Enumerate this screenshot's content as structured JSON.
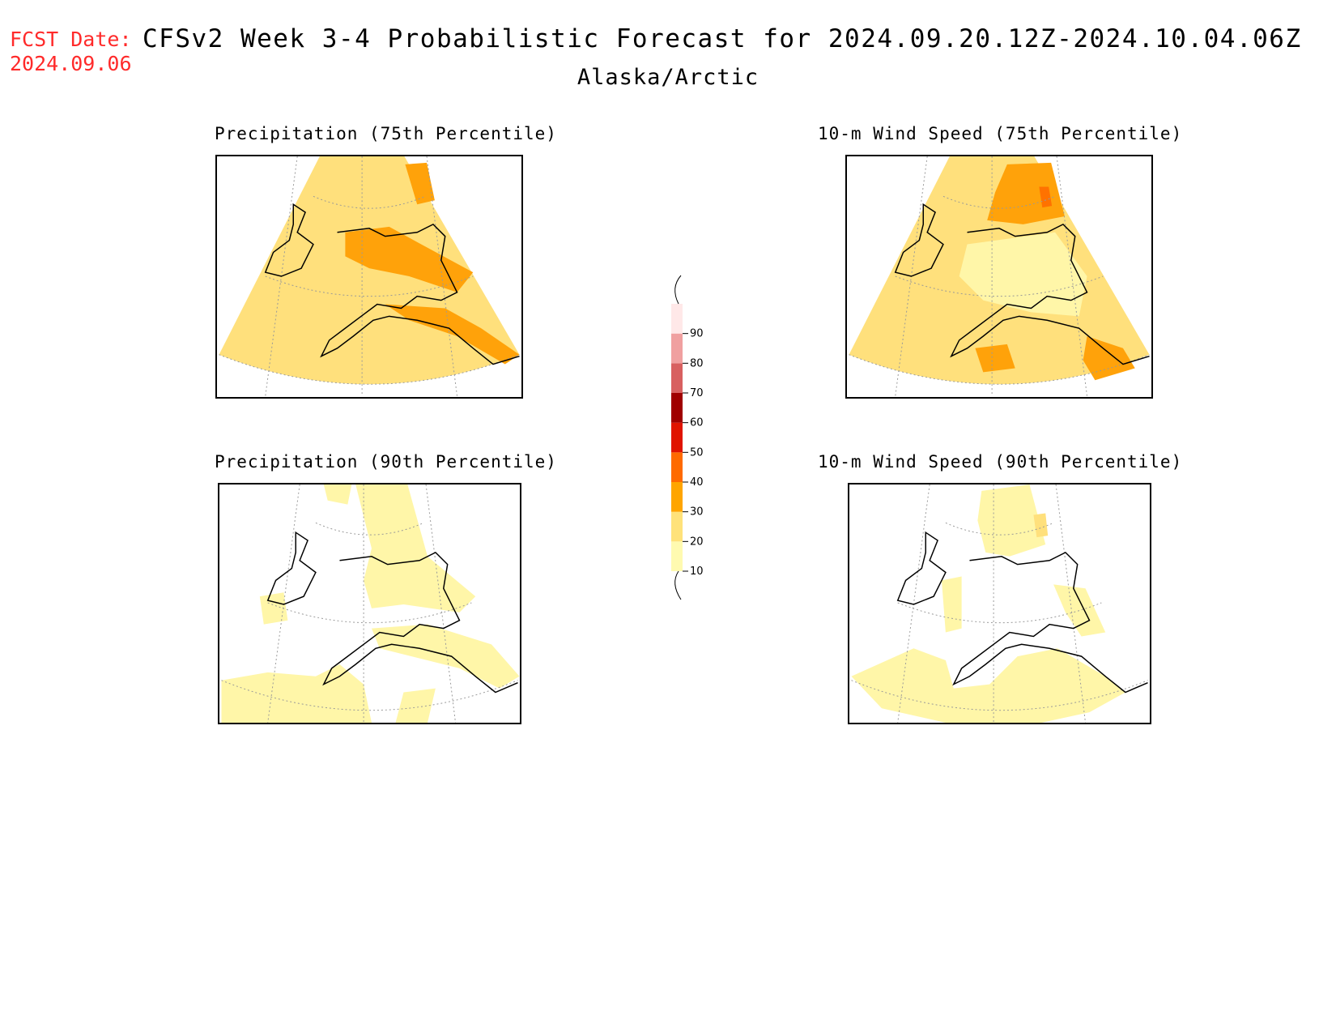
{
  "header": {
    "fcst_label": "FCST Date:",
    "fcst_date": "2024.09.06",
    "title": "CFSv2 Week 3-4 Probabilistic Forecast for 2024.09.20.12Z-2024.10.04.06Z",
    "region": "Alaska/Arctic"
  },
  "panels": [
    {
      "title": "Precipitation (75th Percentile)",
      "fill_level": "20-30",
      "highlight_level": "30-40"
    },
    {
      "title": "10-m Wind Speed (75th Percentile)",
      "fill_level": "20-30",
      "highlight_level": "30-40"
    },
    {
      "title": "Precipitation (90th Percentile)",
      "fill_level": "10-20",
      "highlight_level": "10-20"
    },
    {
      "title": "10-m Wind Speed (90th Percentile)",
      "fill_level": "10-20",
      "highlight_level": "20-30"
    }
  ],
  "colorbar": {
    "levels": [
      "10",
      "20",
      "30",
      "40",
      "50",
      "60",
      "70",
      "80",
      "90"
    ],
    "colors": [
      "#fffab0",
      "#ffe27a",
      "#ffa500",
      "#ff6a00",
      "#e01400",
      "#a00000",
      "#d86060",
      "#f0a0a0",
      "#ffe8e8"
    ]
  },
  "colors": {
    "level_10_20": "#fff6a8",
    "level_20_30": "#ffe07c",
    "level_30_40": "#ffa20a",
    "level_40_50": "#ff7200",
    "fcst_text": "#ff2a2a"
  }
}
